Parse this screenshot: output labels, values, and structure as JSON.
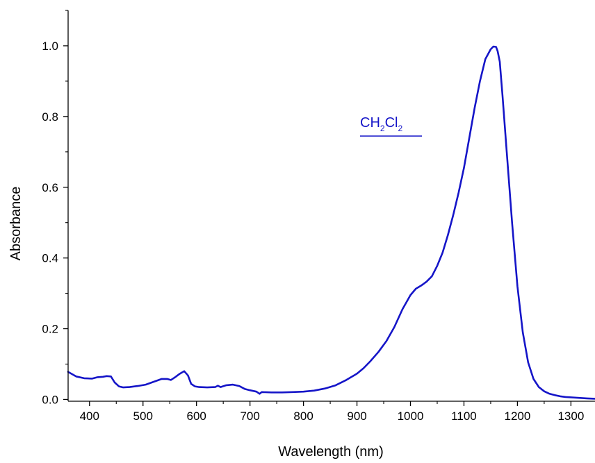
{
  "chart_data": {
    "type": "line",
    "xlabel": "Wavelength (nm)",
    "ylabel": "Absorbance",
    "xlim": [
      360,
      1345
    ],
    "ylim": [
      -0.005,
      1.1
    ],
    "x_ticks": [
      "400",
      "500",
      "600",
      "700",
      "800",
      "900",
      "1000",
      "1100",
      "1200",
      "1300"
    ],
    "y_ticks": [
      "0.0",
      "0.2",
      "0.4",
      "0.6",
      "0.8",
      "1.0"
    ],
    "annotation": {
      "base1": "CH",
      "sub1": "2",
      "base2": "Cl",
      "sub2": "2"
    },
    "series": [
      {
        "color": "#1515c8",
        "x": [
          360,
          375,
          390,
          405,
          415,
          425,
          432,
          440,
          447,
          455,
          463,
          475,
          490,
          505,
          520,
          535,
          545,
          552,
          560,
          568,
          577,
          584,
          590,
          597,
          605,
          620,
          635,
          640,
          645,
          655,
          668,
          680,
          690,
          700,
          712,
          718,
          722,
          740,
          760,
          780,
          800,
          820,
          840,
          860,
          880,
          900,
          912,
          925,
          940,
          955,
          970,
          985,
          1000,
          1010,
          1020,
          1030,
          1040,
          1050,
          1060,
          1070,
          1080,
          1090,
          1100,
          1110,
          1120,
          1130,
          1140,
          1150,
          1155,
          1160,
          1163,
          1167,
          1172,
          1180,
          1190,
          1200,
          1210,
          1220,
          1230,
          1240,
          1250,
          1260,
          1270,
          1280,
          1290,
          1300,
          1310,
          1320,
          1330,
          1345
        ],
        "y": [
          0.078,
          0.065,
          0.06,
          0.059,
          0.063,
          0.064,
          0.066,
          0.065,
          0.048,
          0.037,
          0.034,
          0.035,
          0.038,
          0.042,
          0.05,
          0.058,
          0.058,
          0.055,
          0.063,
          0.072,
          0.08,
          0.068,
          0.044,
          0.037,
          0.035,
          0.034,
          0.035,
          0.039,
          0.035,
          0.04,
          0.042,
          0.038,
          0.03,
          0.026,
          0.022,
          0.016,
          0.021,
          0.02,
          0.02,
          0.021,
          0.022,
          0.025,
          0.031,
          0.04,
          0.055,
          0.073,
          0.088,
          0.108,
          0.134,
          0.165,
          0.205,
          0.255,
          0.295,
          0.313,
          0.322,
          0.333,
          0.348,
          0.378,
          0.415,
          0.465,
          0.522,
          0.585,
          0.655,
          0.74,
          0.825,
          0.9,
          0.962,
          0.99,
          0.998,
          0.997,
          0.985,
          0.955,
          0.86,
          0.7,
          0.5,
          0.32,
          0.19,
          0.105,
          0.058,
          0.035,
          0.023,
          0.016,
          0.012,
          0.009,
          0.007,
          0.006,
          0.005,
          0.004,
          0.003,
          0.002
        ]
      }
    ]
  }
}
